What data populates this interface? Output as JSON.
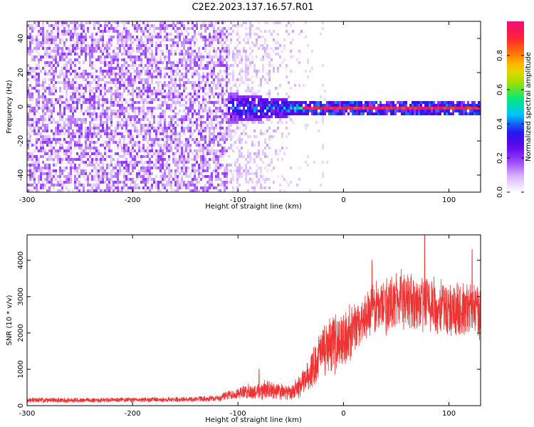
{
  "figure": {
    "title": "C2E2.2023.137.16.57.R01"
  },
  "colors": {
    "snr_line": "#ee3333",
    "spectrum_peak": "#e02010",
    "background": "#ffffff",
    "colormap": [
      "#ffffff",
      "#d9b8ff",
      "#9a40ff",
      "#5a00e8",
      "#1e1ef0",
      "#00c8ff",
      "#00e87a",
      "#9be000",
      "#ffd000",
      "#ff7000",
      "#ff1a3a",
      "#f0107a"
    ]
  },
  "chart_data": [
    {
      "type": "heatmap",
      "panel": "spectrogram",
      "xlabel": "Height of straight line (km)",
      "ylabel": "Frequency (Hz)",
      "xlim": [
        -300,
        130
      ],
      "ylim": [
        -50,
        50
      ],
      "xticks": [
        "-300",
        "-200",
        "-100",
        "0",
        "100"
      ],
      "xtick_values": [
        -300,
        -200,
        -100,
        0,
        100
      ],
      "yticks": [
        "-40",
        "-20",
        "0",
        "20",
        "40"
      ],
      "ytick_values": [
        -40,
        -20,
        0,
        20,
        40
      ],
      "colorbar": {
        "label": "Normalized spectral amplitude",
        "range": [
          0,
          1
        ],
        "ticks": [
          "0.0",
          "0.2",
          "0.4",
          "0.6",
          "0.8"
        ],
        "tick_values": [
          0.0,
          0.2,
          0.4,
          0.6,
          0.8
        ]
      },
      "regions": [
        {
          "x": [
            -300,
            -110
          ],
          "freq": [
            -50,
            50
          ],
          "amplitude": [
            0.05,
            0.2
          ],
          "pattern": "broadband noise"
        },
        {
          "x": [
            -110,
            -40
          ],
          "freq": [
            -8,
            8
          ],
          "amplitude": [
            0.2,
            0.5
          ],
          "pattern": "emerging signal near 0 Hz"
        },
        {
          "x": [
            -40,
            130
          ],
          "freq": [
            -2,
            2
          ],
          "amplitude": [
            0.8,
            1.0
          ],
          "pattern": "narrow tone at 0 Hz"
        }
      ]
    },
    {
      "type": "line",
      "panel": "snr",
      "xlabel": "Height of straight line (km)",
      "ylabel": "SNR (10 * v/v)",
      "xlim": [
        -300,
        130
      ],
      "ylim": [
        0,
        4700
      ],
      "xticks": [
        "-300",
        "-200",
        "-100",
        "0",
        "100"
      ],
      "xtick_values": [
        -300,
        -200,
        -100,
        0,
        100
      ],
      "yticks": [
        "0",
        "1000",
        "2000",
        "3000",
        "4000"
      ],
      "ytick_values": [
        0,
        1000,
        2000,
        3000,
        4000
      ],
      "series": [
        {
          "x": [
            -300,
            -250,
            -200,
            -150,
            -120,
            -110,
            -100,
            -90,
            -80,
            -70,
            -60,
            -50,
            -40,
            -30,
            -20,
            -10,
            0,
            10,
            20,
            30,
            40,
            50,
            60,
            70,
            80,
            90,
            100,
            110,
            120,
            130
          ],
          "y": [
            150,
            150,
            160,
            170,
            200,
            280,
            350,
            380,
            400,
            420,
            380,
            350,
            550,
            1000,
            1500,
            1700,
            1800,
            2100,
            2400,
            2700,
            2800,
            2900,
            2900,
            2800,
            2800,
            2700,
            2700,
            2600,
            2700,
            2600
          ],
          "spread": [
            60,
            60,
            60,
            60,
            70,
            120,
            150,
            180,
            200,
            250,
            200,
            180,
            300,
            450,
            600,
            700,
            700,
            600,
            600,
            650,
            700,
            700,
            700,
            700,
            750,
            700,
            700,
            700,
            700,
            700
          ],
          "spikes": [
            {
              "x": -80,
              "y": 1000
            },
            {
              "x": -18,
              "y": 2200
            },
            {
              "x": 27,
              "y": 4000
            },
            {
              "x": 77,
              "y": 4700
            },
            {
              "x": 122,
              "y": 4300
            }
          ]
        }
      ]
    }
  ]
}
